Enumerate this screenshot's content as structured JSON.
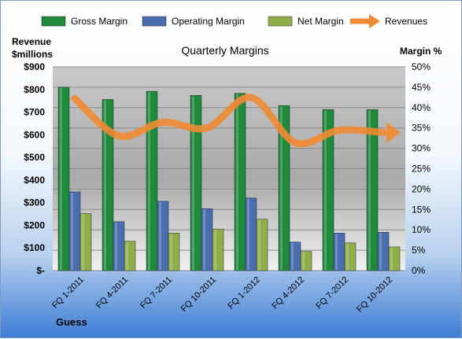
{
  "chart_data": {
    "type": "bar",
    "title": "Quarterly Margins",
    "categories": [
      "FQ 1-2011",
      "FQ 4-2011",
      "FQ 7-2011",
      "FQ 10-2011",
      "FQ 1-2012",
      "FQ 4-2012",
      "FQ 7-2012",
      "FQ 10-2012"
    ],
    "series": [
      {
        "name": "Gross Margin",
        "axis": "right",
        "color": "#1e8a3a",
        "values": [
          45,
          42,
          44,
          43,
          43.5,
          40.5,
          39.5,
          39.5
        ]
      },
      {
        "name": "Operating Margin",
        "axis": "right",
        "color": "#4a6cb0",
        "values": [
          19.3,
          12,
          17,
          15.2,
          17.8,
          7,
          9.2,
          9.4
        ]
      },
      {
        "name": "Net Margin",
        "axis": "right",
        "color": "#8fae4a",
        "values": [
          14,
          7.2,
          9.2,
          10.2,
          12.6,
          4.7,
          6.8,
          5.8
        ]
      },
      {
        "name": "Revenues",
        "axis": "left",
        "color": "#f08a33",
        "type": "line",
        "values": [
          760,
          595,
          655,
          630,
          765,
          565,
          620,
          610
        ]
      }
    ],
    "left_axis": {
      "label_line1": "Revenue",
      "label_line2": "$millions",
      "ylim": [
        0,
        900
      ],
      "ticks": [
        "$-",
        "$100",
        "$200",
        "$300",
        "$400",
        "$500",
        "$600",
        "$700",
        "$800",
        "$900"
      ]
    },
    "right_axis": {
      "label": "Margin %",
      "ylim": [
        0,
        50
      ],
      "ticks": [
        "0%",
        "5%",
        "10%",
        "15%",
        "20%",
        "25%",
        "30%",
        "35%",
        "40%",
        "45%",
        "50%"
      ]
    },
    "legend_position": "top",
    "grid": true,
    "footnote": "Guess"
  }
}
